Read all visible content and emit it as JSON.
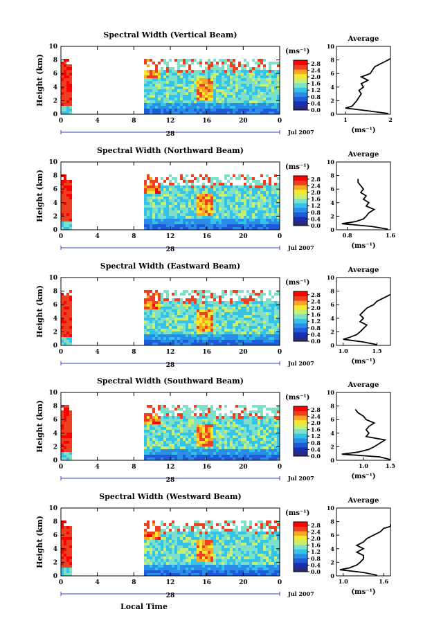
{
  "chart_data": [
    {
      "type": "heatmap",
      "title": "Spectral Width (Vertical Beam)",
      "ylabel": "Height (km)",
      "ylim": [
        0,
        10
      ],
      "yticks": [
        "0",
        "2",
        "4",
        "6",
        "8",
        "10"
      ],
      "xticks": [
        "0",
        "4",
        "8",
        "12",
        "16",
        "20",
        "0"
      ],
      "xlim_hours": [
        0,
        24
      ],
      "date_day": "28",
      "date_month_year": "Jul 2007",
      "colorbar_unit": "(ms⁻¹)",
      "colorbar_ticks": [
        "0.0",
        "0.4",
        "0.8",
        "1.2",
        "1.6",
        "2.0",
        "2.4",
        "2.8"
      ],
      "colorbar_range": [
        0.0,
        3.0
      ],
      "data_segments_hours": [
        [
          0.0,
          1.1
        ],
        [
          9.0,
          24.0
        ]
      ],
      "avg_title": "Average",
      "avg_xlabel": "(ms⁻¹)",
      "avg_xlim": [
        0.8,
        2.0
      ],
      "avg_xticks": [
        "1",
        "2"
      ],
      "avg_ylim": [
        0,
        10
      ],
      "avg_yticks": [
        "0",
        "2",
        "4",
        "6",
        "8",
        "10"
      ],
      "avg_profile": {
        "height_km": [
          0.1,
          0.5,
          0.9,
          1.2,
          1.6,
          2.0,
          2.5,
          3.0,
          3.5,
          4.0,
          4.5,
          5.0,
          5.5,
          6.0,
          6.5,
          7.0,
          7.5,
          8.0,
          8.2
        ],
        "value": [
          1.95,
          1.5,
          1.0,
          1.15,
          1.2,
          1.25,
          1.3,
          1.35,
          1.3,
          1.4,
          1.35,
          1.5,
          1.35,
          1.55,
          1.6,
          1.65,
          1.8,
          1.95,
          2.0
        ]
      }
    },
    {
      "type": "heatmap",
      "title": "Spectral Width (Northward Beam)",
      "ylabel": "Height (km)",
      "ylim": [
        0,
        10
      ],
      "yticks": [
        "0",
        "2",
        "4",
        "6",
        "8",
        "10"
      ],
      "xticks": [
        "0",
        "4",
        "8",
        "12",
        "16",
        "20",
        "0"
      ],
      "xlim_hours": [
        0,
        24
      ],
      "date_day": "28",
      "date_month_year": "Jul 2007",
      "colorbar_unit": "(ms⁻¹)",
      "colorbar_ticks": [
        "0.0",
        "0.4",
        "0.8",
        "1.2",
        "1.6",
        "2.0",
        "2.4",
        "2.8"
      ],
      "colorbar_range": [
        0.0,
        3.0
      ],
      "data_segments_hours": [
        [
          0.0,
          1.1
        ],
        [
          9.0,
          24.0
        ]
      ],
      "avg_title": "Average",
      "avg_xlabel": "(ms⁻¹)",
      "avg_xlim": [
        0.6,
        1.6
      ],
      "avg_xticks": [
        "0.8",
        "1.6"
      ],
      "avg_ylim": [
        0,
        10
      ],
      "avg_yticks": [
        "0",
        "2",
        "4",
        "6",
        "8",
        "10"
      ],
      "avg_profile": {
        "height_km": [
          0.1,
          0.5,
          0.9,
          1.2,
          1.6,
          2.0,
          2.5,
          3.0,
          3.5,
          4.0,
          4.5,
          5.0,
          5.5,
          6.0,
          6.5,
          7.0,
          7.5
        ],
        "value": [
          1.55,
          1.25,
          0.7,
          0.95,
          1.1,
          1.15,
          1.2,
          1.3,
          1.15,
          1.2,
          1.1,
          1.15,
          1.05,
          1.1,
          1.05,
          1.0,
          1.0
        ]
      }
    },
    {
      "type": "heatmap",
      "title": "Spectral Width (Eastward Beam)",
      "ylabel": "Height (km)",
      "ylim": [
        0,
        10
      ],
      "yticks": [
        "0",
        "2",
        "4",
        "6",
        "8",
        "10"
      ],
      "xticks": [
        "0",
        "4",
        "8",
        "12",
        "16",
        "20",
        "0"
      ],
      "xlim_hours": [
        0,
        24
      ],
      "date_day": "28",
      "date_month_year": "Jul 2007",
      "colorbar_unit": "(ms⁻¹)",
      "colorbar_ticks": [
        "0.0",
        "0.4",
        "0.8",
        "1.2",
        "1.6",
        "2.0",
        "2.4",
        "2.8"
      ],
      "colorbar_range": [
        0.0,
        3.0
      ],
      "data_segments_hours": [
        [
          0.0,
          1.1
        ],
        [
          9.0,
          24.0
        ]
      ],
      "avg_title": "Average",
      "avg_xlabel": "(ms⁻¹)",
      "avg_xlim": [
        0.9,
        1.7
      ],
      "avg_xticks": [
        "1.0",
        "1.5"
      ],
      "avg_ylim": [
        0,
        10
      ],
      "avg_yticks": [
        "0",
        "2",
        "4",
        "6",
        "8",
        "10"
      ],
      "avg_profile": {
        "height_km": [
          0.1,
          0.5,
          0.9,
          1.2,
          1.6,
          2.0,
          2.5,
          3.0,
          3.5,
          4.0,
          4.5,
          5.0,
          5.5,
          6.0,
          6.5,
          7.0,
          7.5
        ],
        "value": [
          1.5,
          1.3,
          1.0,
          1.1,
          1.2,
          1.25,
          1.3,
          1.35,
          1.25,
          1.3,
          1.25,
          1.3,
          1.35,
          1.45,
          1.5,
          1.6,
          1.7
        ]
      }
    },
    {
      "type": "heatmap",
      "title": "Spectral Width (Southward Beam)",
      "ylabel": "Height (km)",
      "ylim": [
        0,
        10
      ],
      "yticks": [
        "0",
        "2",
        "4",
        "6",
        "8",
        "10"
      ],
      "xticks": [
        "0",
        "4",
        "8",
        "12",
        "16",
        "20",
        "0"
      ],
      "xlim_hours": [
        0,
        24
      ],
      "date_day": "28",
      "date_month_year": "Jul 2007",
      "colorbar_unit": "(ms⁻¹)",
      "colorbar_ticks": [
        "0.0",
        "0.4",
        "0.8",
        "1.2",
        "1.6",
        "2.0",
        "2.4",
        "2.8"
      ],
      "colorbar_range": [
        0.0,
        3.0
      ],
      "data_segments_hours": [
        [
          0.0,
          1.1
        ],
        [
          9.0,
          24.0
        ]
      ],
      "avg_title": "Average",
      "avg_xlabel": "(ms⁻¹)",
      "avg_xlim": [
        0.5,
        1.5
      ],
      "avg_xticks": [
        "1.0",
        "1.5"
      ],
      "avg_ylim": [
        0,
        10
      ],
      "avg_yticks": [
        "0",
        "2",
        "4",
        "6",
        "8",
        "10"
      ],
      "avg_profile": {
        "height_km": [
          0.1,
          0.5,
          0.9,
          1.2,
          1.6,
          2.0,
          2.5,
          3.0,
          3.5,
          4.0,
          4.5,
          5.0,
          5.5,
          6.0,
          6.5,
          7.0,
          7.5
        ],
        "value": [
          1.5,
          1.3,
          0.6,
          0.9,
          1.1,
          1.2,
          1.3,
          1.4,
          1.05,
          1.1,
          1.05,
          1.1,
          1.2,
          1.05,
          1.0,
          0.9,
          0.85
        ]
      }
    },
    {
      "type": "heatmap",
      "title": "Spectral Width (Westward Beam)",
      "ylabel": "Height (km)",
      "ylim": [
        0,
        10
      ],
      "yticks": [
        "0",
        "2",
        "4",
        "6",
        "8",
        "10"
      ],
      "xticks": [
        "0",
        "4",
        "8",
        "12",
        "16",
        "20",
        "0"
      ],
      "xlim_hours": [
        0,
        24
      ],
      "date_day": "28",
      "date_month_year": "Jul 2007",
      "colorbar_unit": "(ms⁻¹)",
      "colorbar_ticks": [
        "0.0",
        "0.4",
        "0.8",
        "1.2",
        "1.6",
        "2.0",
        "2.4",
        "2.8"
      ],
      "colorbar_range": [
        0.0,
        3.0
      ],
      "data_segments_hours": [
        [
          0.0,
          1.1
        ],
        [
          9.0,
          24.0
        ]
      ],
      "avg_title": "Average",
      "avg_xlabel": "(ms⁻¹)",
      "avg_xlim": [
        0.9,
        1.7
      ],
      "avg_xticks": [
        "1.0",
        "1.6"
      ],
      "avg_ylim": [
        0,
        10
      ],
      "avg_yticks": [
        "0",
        "2",
        "4",
        "6",
        "8",
        "10"
      ],
      "avg_profile": {
        "height_km": [
          0.1,
          0.5,
          0.9,
          1.2,
          1.6,
          2.0,
          2.5,
          3.0,
          3.5,
          4.0,
          4.5,
          5.0,
          5.5,
          6.0,
          6.5,
          7.0,
          7.3,
          7.6
        ],
        "value": [
          1.5,
          1.3,
          0.95,
          1.1,
          1.2,
          1.25,
          1.3,
          1.3,
          1.2,
          1.3,
          1.2,
          1.3,
          1.35,
          1.45,
          1.55,
          1.6,
          1.7,
          1.7
        ]
      }
    }
  ],
  "shared_xlabel": "Local Time",
  "colors": {
    "scale": [
      "#2a2a7a",
      "#1a2fb0",
      "#1f5ad8",
      "#2a8ee8",
      "#35c2e8",
      "#7de0c8",
      "#c8f070",
      "#f4e830",
      "#f8a820",
      "#ee4020",
      "#ff0000"
    ],
    "axis": "#000000",
    "date_marker": "#3344bb"
  }
}
